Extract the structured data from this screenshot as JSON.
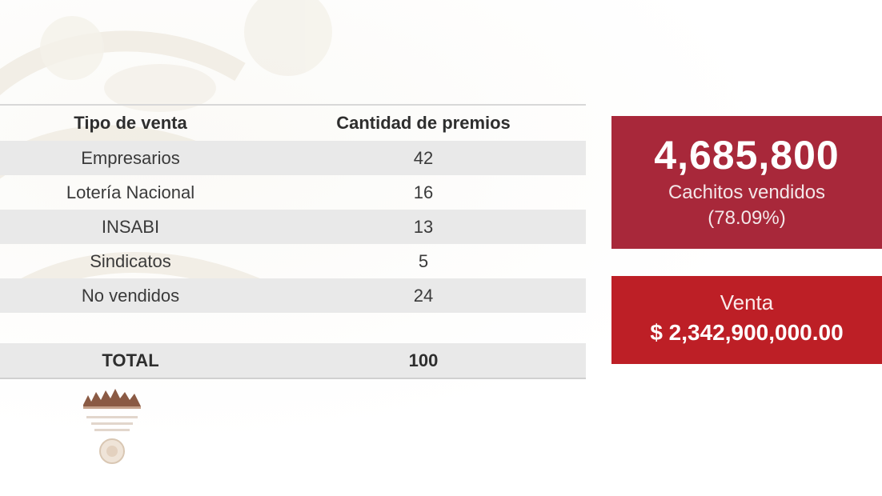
{
  "table": {
    "headers": {
      "type": "Tipo de venta",
      "count": "Cantidad de premios"
    },
    "rows": [
      {
        "type": "Empresarios",
        "count": "42"
      },
      {
        "type": "Lotería Nacional",
        "count": "16"
      },
      {
        "type": "INSABI",
        "count": "13"
      },
      {
        "type": "Sindicatos",
        "count": "5"
      },
      {
        "type": "No vendidos",
        "count": "24"
      }
    ],
    "total": {
      "label": "TOTAL",
      "count": "100"
    }
  },
  "sold_box": {
    "number": "4,685,800",
    "label": "Cachitos vendidos",
    "percent": "(78.09%)",
    "color": "#a8283a"
  },
  "sale_box": {
    "label": "Venta",
    "amount": "$ 2,342,900,000.00",
    "color": "#bd1f26"
  },
  "icons": {
    "watermark": "eagle-emblem-watermark-icon",
    "emblem": "government-emblem-icon"
  }
}
